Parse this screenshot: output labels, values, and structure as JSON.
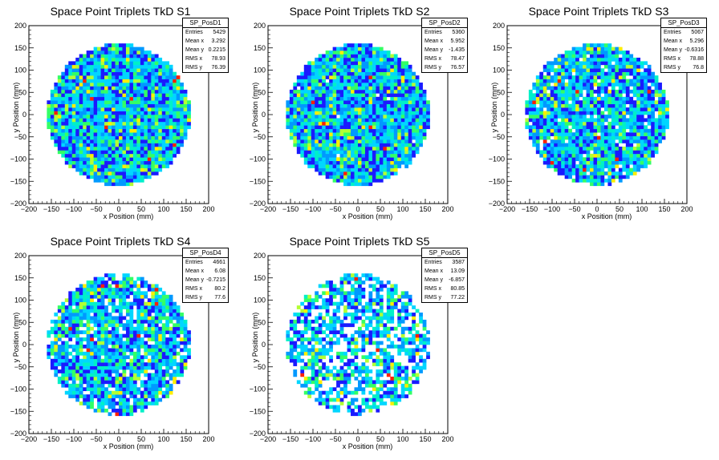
{
  "chart_data": [
    {
      "type": "heatmap",
      "title": "Space Point Triplets TkD S1",
      "xlabel": "x Position (mm)",
      "ylabel": "y Position (mm)",
      "xlim": [
        -200,
        200
      ],
      "ylim": [
        -200,
        200
      ],
      "xticks": [
        "−200",
        "−150",
        "−100",
        "−50",
        "0",
        "50",
        "100",
        "150",
        "200"
      ],
      "yticks": [
        "200",
        "150",
        "100",
        "50",
        "0",
        "−50",
        "−100",
        "−150",
        "−200"
      ],
      "radius_mm": 160,
      "stats": {
        "name": "SP_PosD1",
        "rows": [
          {
            "label": "Entries",
            "value": "5429"
          },
          {
            "label": "Mean x",
            "value": "3.292"
          },
          {
            "label": "Mean y",
            "value": "0.2215"
          },
          {
            "label": "RMS x",
            "value": "78.93"
          },
          {
            "label": "RMS y",
            "value": "76.39"
          }
        ]
      },
      "density": 1.0
    },
    {
      "type": "heatmap",
      "title": "Space Point Triplets TkD S2",
      "xlabel": "x Position (mm)",
      "ylabel": "y Position (mm)",
      "xlim": [
        -200,
        200
      ],
      "ylim": [
        -200,
        200
      ],
      "xticks": [
        "−200",
        "−150",
        "−100",
        "−50",
        "0",
        "50",
        "100",
        "150",
        "200"
      ],
      "yticks": [
        "200",
        "150",
        "100",
        "50",
        "0",
        "−50",
        "−100",
        "−150",
        "−200"
      ],
      "radius_mm": 160,
      "stats": {
        "name": "SP_PosD2",
        "rows": [
          {
            "label": "Entries",
            "value": "5360"
          },
          {
            "label": "Mean x",
            "value": "5.952"
          },
          {
            "label": "Mean y",
            "value": "-1.435"
          },
          {
            "label": "RMS x",
            "value": "78.47"
          },
          {
            "label": "RMS y",
            "value": "76.57"
          }
        ]
      },
      "density": 0.99
    },
    {
      "type": "heatmap",
      "title": "Space Point Triplets TkD S3",
      "xlabel": "x Position (mm)",
      "ylabel": "y Position (mm)",
      "xlim": [
        -200,
        200
      ],
      "ylim": [
        -200,
        200
      ],
      "xticks": [
        "−200",
        "−150",
        "−100",
        "−50",
        "0",
        "50",
        "100",
        "150",
        "200"
      ],
      "yticks": [
        "200",
        "150",
        "100",
        "50",
        "0",
        "−50",
        "−100",
        "−150",
        "−200"
      ],
      "radius_mm": 160,
      "stats": {
        "name": "SP_PosD3",
        "rows": [
          {
            "label": "Entries",
            "value": "5067"
          },
          {
            "label": "Mean x",
            "value": "5.296"
          },
          {
            "label": "Mean y",
            "value": "-0.6316"
          },
          {
            "label": "RMS x",
            "value": "78.88"
          },
          {
            "label": "RMS y",
            "value": "76.8"
          }
        ]
      },
      "density": 0.93
    },
    {
      "type": "heatmap",
      "title": "Space Point Triplets TkD S4",
      "xlabel": "x Position (mm)",
      "ylabel": "y Position (mm)",
      "xlim": [
        -200,
        200
      ],
      "ylim": [
        -200,
        200
      ],
      "xticks": [
        "−200",
        "−150",
        "−100",
        "−50",
        "0",
        "50",
        "100",
        "150",
        "200"
      ],
      "yticks": [
        "200",
        "150",
        "100",
        "50",
        "0",
        "−50",
        "−100",
        "−150",
        "−200"
      ],
      "radius_mm": 160,
      "stats": {
        "name": "SP_PosD4",
        "rows": [
          {
            "label": "Entries",
            "value": "4661"
          },
          {
            "label": "Mean x",
            "value": "6.08"
          },
          {
            "label": "Mean y",
            "value": "-0.7215"
          },
          {
            "label": "RMS x",
            "value": "80.2"
          },
          {
            "label": "RMS y",
            "value": "77.6"
          }
        ]
      },
      "density": 0.86
    },
    {
      "type": "heatmap",
      "title": "Space Point Triplets TkD S5",
      "xlabel": "x Position (mm)",
      "ylabel": "y Position (mm)",
      "xlim": [
        -200,
        200
      ],
      "ylim": [
        -200,
        200
      ],
      "xticks": [
        "−200",
        "−150",
        "−100",
        "−50",
        "0",
        "50",
        "100",
        "150",
        "200"
      ],
      "yticks": [
        "200",
        "150",
        "100",
        "50",
        "0",
        "−50",
        "−100",
        "−150",
        "−200"
      ],
      "radius_mm": 160,
      "stats": {
        "name": "SP_PosD5",
        "rows": [
          {
            "label": "Entries",
            "value": "3587"
          },
          {
            "label": "Mean x",
            "value": "13.09"
          },
          {
            "label": "Mean y",
            "value": "-6.857"
          },
          {
            "label": "RMS x",
            "value": "80.85"
          },
          {
            "label": "RMS y",
            "value": "77.22"
          }
        ]
      },
      "density": 0.66
    }
  ],
  "palette": [
    "#1a1aff",
    "#0099ff",
    "#00d6ff",
    "#00f0c8",
    "#33ff66",
    "#b3ff33",
    "#ffee00",
    "#ff2000"
  ]
}
